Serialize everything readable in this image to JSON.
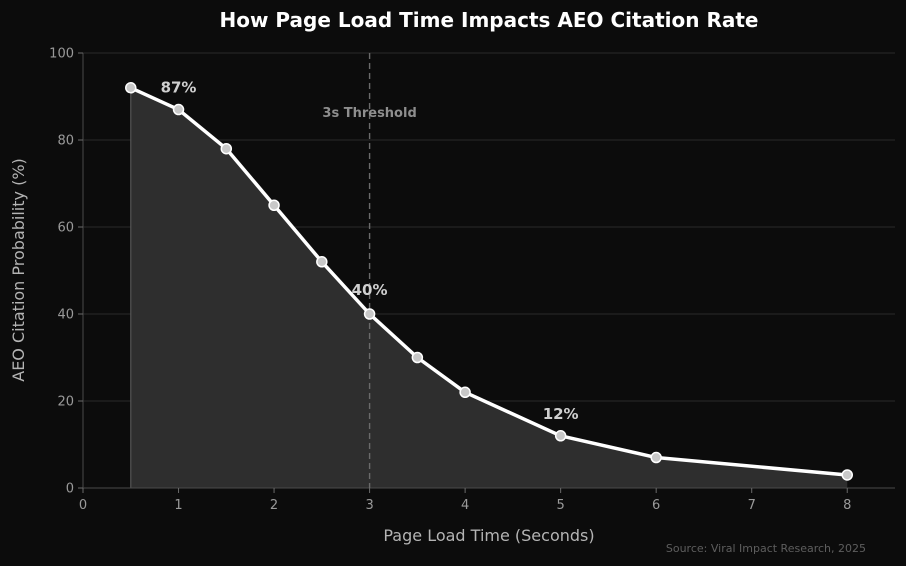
{
  "chart_data": {
    "type": "area",
    "title": "How Page Load Time Impacts AEO Citation Rate",
    "xlabel": "Page Load Time (Seconds)",
    "ylabel": "AEO Citation Probability (%)",
    "xlim": [
      0,
      8.5
    ],
    "ylim": [
      0,
      100
    ],
    "x_ticks": [
      0,
      1,
      2,
      3,
      4,
      5,
      6,
      7,
      8
    ],
    "y_ticks": [
      0,
      20,
      40,
      60,
      80,
      100
    ],
    "grid": "horizontal",
    "series": [
      {
        "x": [
          0.5,
          1,
          1.5,
          2,
          2.5,
          3,
          3.5,
          4,
          5,
          6,
          8
        ],
        "y": [
          92,
          87,
          78,
          65,
          52,
          40,
          30,
          22,
          12,
          7,
          3
        ]
      }
    ],
    "threshold": {
      "x": 3,
      "label": "3s Threshold"
    },
    "annotations": [
      {
        "x": 1,
        "y": 87,
        "text": "87%"
      },
      {
        "x": 3,
        "y": 40,
        "text": "40%"
      },
      {
        "x": 5,
        "y": 12,
        "text": "12%"
      }
    ],
    "source": "Source: Viral Impact Research, 2025",
    "colors": {
      "background": "#0c0c0c",
      "line": "#ffffff",
      "fill": "#2e2e2e",
      "marker": "#c8c8c8",
      "grid": "#2a2a2a",
      "threshold": "#6a6a6a"
    }
  }
}
